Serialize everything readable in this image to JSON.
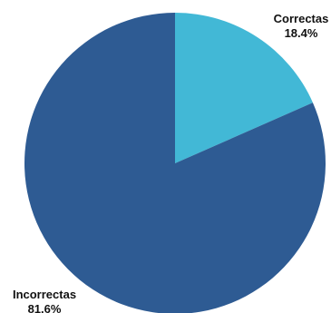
{
  "chart_data": {
    "type": "pie",
    "title": "",
    "legend": "none",
    "slices": [
      {
        "label": "Correctas",
        "value": 18.4,
        "value_label": "18.4%",
        "color": "#42b8d6"
      },
      {
        "label": "Incorrectas",
        "value": 81.6,
        "value_label": "81.6%",
        "color": "#2e5b93"
      }
    ]
  }
}
